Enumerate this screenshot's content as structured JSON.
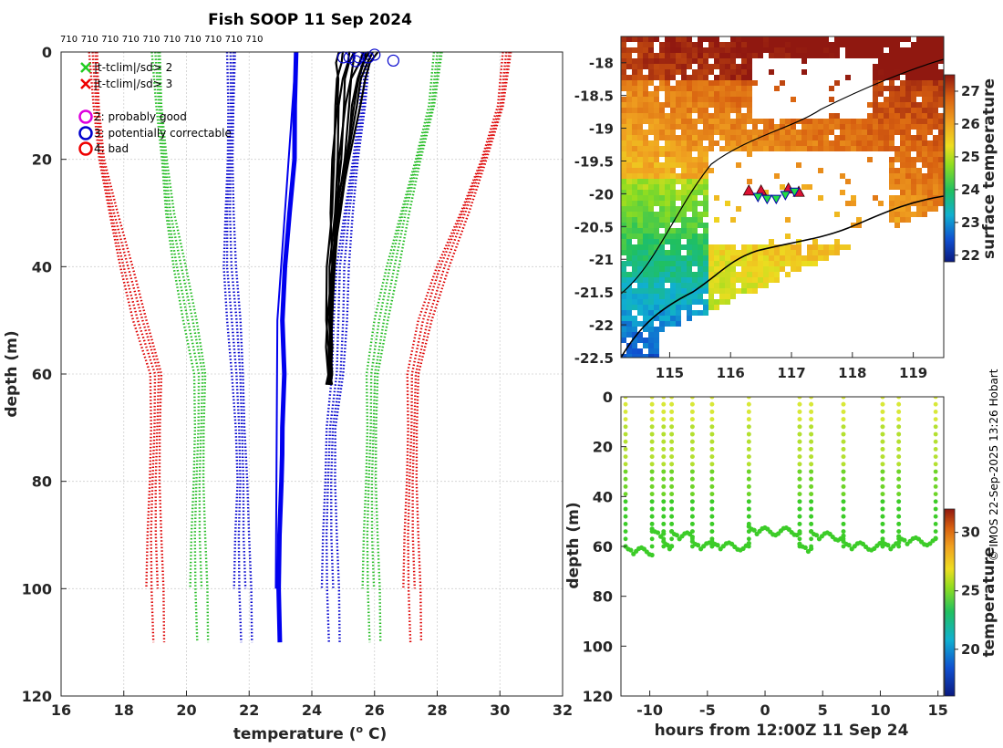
{
  "chart_data": [
    {
      "type": "line",
      "panel": "profile",
      "title": "Fish SOOP 11 Sep 2024",
      "xlabel": "temperature (",
      "xlabel_sup": "o",
      "xlabel_end": " C)",
      "ylabel": "depth (m)",
      "xlim": [
        16,
        32
      ],
      "ylim": [
        0,
        120
      ],
      "y_reversed": true,
      "xticks": [
        16,
        18,
        20,
        22,
        24,
        26,
        28,
        30,
        32
      ],
      "yticks": [
        0,
        20,
        40,
        60,
        80,
        100,
        120
      ],
      "top_labels": [
        "710",
        "710",
        "710",
        "710",
        "710",
        "710",
        "710",
        "710",
        "710",
        "710"
      ],
      "legend": [
        {
          "marker": "x",
          "color": "#22cc22",
          "label": "|t-tclim|/sd> 2"
        },
        {
          "marker": "x",
          "color": "#ee0000",
          "label": "|t-tclim|/sd> 3"
        },
        {
          "marker": "o",
          "color": "#dd00dd",
          "label": "2: probably good"
        },
        {
          "marker": "o",
          "color": "#0000cc",
          "label": "3: potentially correctable"
        },
        {
          "marker": "o",
          "color": "#ee0000",
          "label": "4: bad"
        }
      ],
      "series": [
        {
          "name": "clim -3sd",
          "color": "#dd0000",
          "style": "dotted",
          "depth": [
            0,
            10,
            20,
            30,
            40,
            50,
            60,
            70,
            80,
            90,
            100,
            110
          ],
          "temp": [
            17.0,
            17.1,
            17.3,
            17.7,
            18.1,
            18.5,
            19.0,
            19.0,
            19.0,
            19.0,
            19.0,
            19.0
          ]
        },
        {
          "name": "clim -2sd",
          "color": "#22bb22",
          "style": "dotted",
          "depth": [
            0,
            10,
            20,
            30,
            40,
            50,
            60,
            70,
            80,
            90,
            100,
            110
          ],
          "temp": [
            19.0,
            19.1,
            19.3,
            19.5,
            19.8,
            20.1,
            20.4,
            20.4,
            20.4,
            20.4,
            20.4,
            20.4
          ]
        },
        {
          "name": "clim -1sd",
          "color": "#0000cc",
          "style": "dotted",
          "depth": [
            0,
            10,
            20,
            30,
            40,
            50,
            60,
            70,
            80,
            90,
            100,
            110
          ],
          "temp": [
            21.4,
            21.4,
            21.4,
            21.4,
            21.4,
            21.5,
            21.6,
            21.7,
            21.8,
            21.8,
            21.8,
            21.8
          ]
        },
        {
          "name": "clim mean",
          "color": "#0000ee",
          "style": "solid",
          "depth": [
            0,
            10,
            20,
            30,
            40,
            50,
            60,
            70,
            75,
            80,
            90,
            100,
            110
          ],
          "temp": [
            23.5,
            23.4,
            23.4,
            23.3,
            23.2,
            23.1,
            23.1,
            23.0,
            23.0,
            23.0,
            23.0,
            23.0,
            23.0
          ]
        },
        {
          "name": "clim +1sd",
          "color": "#0000cc",
          "style": "dotted",
          "depth": [
            0,
            10,
            20,
            30,
            40,
            50,
            60,
            70,
            80,
            90,
            100,
            110
          ],
          "temp": [
            25.7,
            25.6,
            25.4,
            25.2,
            25.0,
            24.9,
            24.8,
            24.6,
            24.6,
            24.6,
            24.6,
            24.6
          ]
        },
        {
          "name": "clim +2sd",
          "color": "#22bb22",
          "style": "dotted",
          "depth": [
            0,
            10,
            20,
            30,
            40,
            50,
            60,
            70,
            80,
            90,
            100,
            110
          ],
          "temp": [
            28.0,
            27.8,
            27.4,
            27.0,
            26.6,
            26.2,
            25.9,
            25.9,
            25.9,
            25.9,
            25.9,
            25.9
          ]
        },
        {
          "name": "clim +3sd",
          "color": "#dd0000",
          "style": "dotted",
          "depth": [
            0,
            10,
            20,
            30,
            40,
            50,
            60,
            70,
            80,
            90,
            100,
            110
          ],
          "temp": [
            30.2,
            30.0,
            29.5,
            28.9,
            28.2,
            27.6,
            27.2,
            27.2,
            27.2,
            27.2,
            27.2,
            27.2
          ]
        }
      ],
      "profiles_depth": [
        0,
        2,
        5,
        10,
        20,
        30,
        40,
        50,
        55,
        60,
        62
      ],
      "profiles_temp": [
        [
          25.2,
          25.1,
          25.0,
          24.9,
          24.8,
          24.7,
          24.6,
          24.6,
          24.6,
          24.6,
          24.6
        ],
        [
          25.6,
          25.5,
          25.3,
          25.2,
          25.0,
          24.8,
          24.7,
          24.6,
          24.6,
          24.6,
          24.6
        ],
        [
          25.9,
          25.8,
          25.6,
          25.4,
          25.1,
          24.9,
          24.7,
          24.6,
          24.6,
          24.6,
          24.5
        ],
        [
          26.1,
          25.9,
          25.7,
          25.5,
          25.2,
          24.9,
          24.7,
          24.6,
          24.6,
          24.6,
          24.6
        ],
        [
          24.9,
          24.8,
          24.8,
          24.8,
          24.7,
          24.6,
          24.6,
          24.5,
          24.5,
          24.5,
          24.5
        ],
        [
          25.4,
          25.3,
          25.2,
          25.1,
          24.9,
          24.8,
          24.7,
          24.6,
          24.6,
          24.6,
          24.6
        ],
        [
          25.0,
          24.9,
          24.8,
          24.8,
          24.7,
          24.6,
          24.5,
          24.5,
          24.5,
          24.5,
          24.5
        ],
        [
          25.7,
          25.6,
          25.5,
          25.3,
          25.1,
          24.9,
          24.7,
          24.6,
          24.6,
          24.6,
          24.6
        ],
        [
          25.3,
          25.2,
          25.1,
          25.0,
          24.9,
          24.8,
          24.7,
          24.6,
          24.6,
          24.6,
          24.6
        ],
        [
          25.8,
          25.7,
          25.5,
          25.3,
          25.1,
          24.8,
          24.7,
          24.6,
          24.6,
          24.6,
          24.6
        ]
      ],
      "flag3_circles": [
        [
          25.0,
          1
        ],
        [
          25.2,
          1
        ],
        [
          25.5,
          1
        ],
        [
          25.8,
          1
        ],
        [
          26.0,
          0.5
        ],
        [
          26.6,
          1.6
        ],
        [
          25.4,
          1.7
        ]
      ]
    },
    {
      "type": "heatmap",
      "panel": "map",
      "colorbar_label": "surface temperature",
      "xlim": [
        114.2,
        119.5
      ],
      "ylim": [
        -22.5,
        -17.6
      ],
      "xticks": [
        115,
        116,
        117,
        118,
        119
      ],
      "yticks": [
        -18,
        -18.5,
        -19,
        -19.5,
        -20,
        -20.5,
        -21,
        -21.5,
        -22,
        -22.5
      ],
      "yticklabels": [
        "-18",
        "-18.5",
        "-19",
        "-19.5",
        "-20",
        "-20.5",
        "-21",
        "-21.5",
        "-22",
        "-22.5"
      ],
      "cbar_range": [
        21.8,
        27.5
      ],
      "cbar_ticks": [
        22,
        23,
        24,
        25,
        26,
        27
      ],
      "stations_up": [
        [
          116.3,
          -19.95
        ],
        [
          116.5,
          -19.95
        ],
        [
          116.95,
          -19.92
        ],
        [
          117.12,
          -19.97
        ]
      ],
      "stations_down": [
        [
          116.45,
          -20.05
        ],
        [
          116.6,
          -20.08
        ],
        [
          116.75,
          -20.08
        ],
        [
          116.9,
          -20.02
        ],
        [
          117.05,
          -19.97
        ]
      ]
    },
    {
      "type": "scatter",
      "panel": "time-depth",
      "xlabel": "hours from 12:00Z 11 Sep 24",
      "ylabel": "depth (m)",
      "colorbar_label": "temperature",
      "xlim": [
        -12.5,
        15.5
      ],
      "ylim": [
        0,
        120
      ],
      "y_reversed": true,
      "xticks": [
        -10,
        -5,
        0,
        5,
        10,
        15
      ],
      "yticks": [
        0,
        20,
        40,
        60,
        80,
        100,
        120
      ],
      "cbar_range": [
        16,
        32
      ],
      "cbar_ticks": [
        20,
        25,
        30
      ],
      "casts": [
        {
          "start": -12.1,
          "end": -9.8,
          "depth": 62
        },
        {
          "start": -9.8,
          "end": -8.8,
          "depth": 55
        },
        {
          "start": -8.8,
          "end": -8.1,
          "depth": 60
        },
        {
          "start": -8.1,
          "end": -6.3,
          "depth": 56
        },
        {
          "start": -6.3,
          "end": -4.6,
          "depth": 60
        },
        {
          "start": -4.6,
          "end": -1.4,
          "depth": 60
        },
        {
          "start": -1.4,
          "end": 3.0,
          "depth": 54
        },
        {
          "start": 3.0,
          "end": 4.0,
          "depth": 61
        },
        {
          "start": 4.0,
          "end": 6.8,
          "depth": 56
        },
        {
          "start": 6.8,
          "end": 10.2,
          "depth": 60
        },
        {
          "start": 10.2,
          "end": 11.6,
          "depth": 60
        },
        {
          "start": 11.6,
          "end": 14.8,
          "depth": 58
        }
      ]
    }
  ],
  "credit": "© IMOS 22-Sep-2025 13:26 Hobart"
}
